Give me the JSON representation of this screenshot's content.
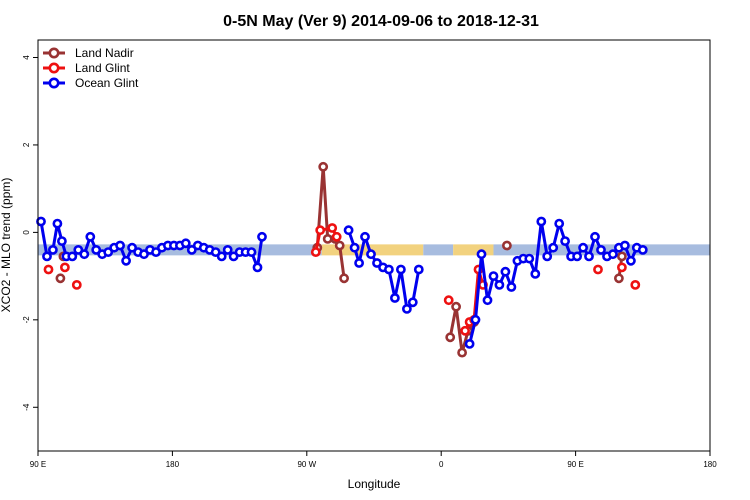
{
  "chart_data": {
    "type": "line",
    "title": "0-5N May (Ver 9)   2014-09-06 to 2018-12-31",
    "xlabel": "Longitude",
    "ylabel": "XCO2 - MLO trend (ppm)",
    "xlim": [
      90,
      450
    ],
    "ylim": [
      -5,
      4.4
    ],
    "x_ticks": [
      {
        "value": 90,
        "label": "90 E"
      },
      {
        "value": 180,
        "label": "180"
      },
      {
        "value": 270,
        "label": "90 W"
      },
      {
        "value": 360,
        "label": "0"
      },
      {
        "value": 450,
        "label": "90 E"
      },
      {
        "value": 540,
        "label": "180"
      }
    ],
    "x_ticks_note": "values listed in longitude units; chart range continues to 540",
    "y_ticks": [
      4,
      2,
      0,
      -2,
      -4
    ],
    "legend_position": "top-left",
    "band": {
      "y": -0.4,
      "segments": [
        {
          "from": 90,
          "to": 280,
          "color": "#a7bcdf"
        },
        {
          "from": 280,
          "to": 348,
          "color": "#f2d27f"
        },
        {
          "from": 348,
          "to": 368,
          "color": "#a7bcdf"
        },
        {
          "from": 368,
          "to": 395,
          "color": "#f2d27f"
        },
        {
          "from": 395,
          "to": 540,
          "color": "#a7bcdf"
        }
      ]
    },
    "series": [
      {
        "name": "Land Nadir",
        "color": "#993333",
        "segments": [
          [
            [
              107,
              -0.55
            ]
          ],
          [
            [
              105,
              -1.05
            ]
          ],
          [
            [
              277,
              -0.35
            ],
            [
              281,
              1.5
            ],
            [
              284,
              -0.15
            ],
            [
              289,
              -0.15
            ],
            [
              292,
              -0.3
            ],
            [
              295,
              -1.05
            ]
          ],
          [
            [
              366,
              -2.4
            ],
            [
              370,
              -1.7
            ],
            [
              374,
              -2.75
            ],
            [
              378,
              -2.25
            ],
            [
              382,
              -2.05
            ]
          ],
          [
            [
              404,
              -0.3
            ]
          ],
          [
            [
              479,
              -1.05
            ],
            [
              481,
              -0.55
            ]
          ]
        ]
      },
      {
        "name": "Land Glint",
        "color": "#ee1111",
        "segments": [
          [
            [
              97,
              -0.85
            ]
          ],
          [
            [
              108,
              -0.8
            ]
          ],
          [
            [
              116,
              -1.2
            ]
          ],
          [
            [
              276,
              -0.45
            ],
            [
              279,
              0.05
            ],
            [
              287,
              0.1
            ],
            [
              290,
              -0.1
            ]
          ],
          [
            [
              365,
              -1.55
            ]
          ],
          [
            [
              376,
              -2.25
            ],
            [
              379,
              -2.05
            ],
            [
              382,
              -2.0
            ],
            [
              385,
              -0.85
            ],
            [
              388,
              -1.2
            ]
          ],
          [
            [
              465,
              -0.85
            ]
          ],
          [
            [
              481,
              -0.8
            ]
          ],
          [
            [
              490,
              -1.2
            ]
          ]
        ]
      },
      {
        "name": "Ocean Glint",
        "color": "#0000ee",
        "segments": [
          [
            [
              92,
              0.25
            ],
            [
              96,
              -0.55
            ],
            [
              100,
              -0.4
            ],
            [
              103,
              0.2
            ],
            [
              106,
              -0.2
            ],
            [
              109,
              -0.55
            ],
            [
              113,
              -0.55
            ],
            [
              117,
              -0.4
            ],
            [
              121,
              -0.5
            ],
            [
              125,
              -0.1
            ],
            [
              129,
              -0.4
            ],
            [
              133,
              -0.5
            ],
            [
              137,
              -0.45
            ],
            [
              141,
              -0.35
            ],
            [
              145,
              -0.3
            ],
            [
              149,
              -0.65
            ],
            [
              153,
              -0.35
            ],
            [
              157,
              -0.45
            ],
            [
              161,
              -0.5
            ],
            [
              165,
              -0.4
            ],
            [
              169,
              -0.45
            ],
            [
              173,
              -0.35
            ],
            [
              177,
              -0.3
            ],
            [
              181,
              -0.3
            ],
            [
              185,
              -0.3
            ],
            [
              189,
              -0.25
            ],
            [
              193,
              -0.4
            ],
            [
              197,
              -0.3
            ],
            [
              201,
              -0.35
            ],
            [
              205,
              -0.4
            ],
            [
              209,
              -0.45
            ],
            [
              213,
              -0.55
            ],
            [
              217,
              -0.4
            ],
            [
              221,
              -0.55
            ],
            [
              225,
              -0.45
            ],
            [
              229,
              -0.45
            ],
            [
              233,
              -0.45
            ],
            [
              237,
              -0.8
            ],
            [
              240,
              -0.1
            ]
          ],
          [
            [
              298,
              0.05
            ],
            [
              302,
              -0.35
            ],
            [
              305,
              -0.7
            ],
            [
              309,
              -0.1
            ],
            [
              313,
              -0.5
            ],
            [
              317,
              -0.7
            ],
            [
              321,
              -0.8
            ],
            [
              325,
              -0.85
            ],
            [
              329,
              -1.5
            ],
            [
              333,
              -0.85
            ],
            [
              337,
              -1.75
            ],
            [
              341,
              -1.6
            ],
            [
              345,
              -0.85
            ]
          ],
          [
            [
              379,
              -2.55
            ],
            [
              383,
              -2.0
            ],
            [
              387,
              -0.5
            ],
            [
              391,
              -1.55
            ],
            [
              395,
              -1.0
            ],
            [
              399,
              -1.2
            ],
            [
              403,
              -0.9
            ],
            [
              407,
              -1.25
            ],
            [
              411,
              -0.65
            ],
            [
              415,
              -0.6
            ],
            [
              419,
              -0.6
            ],
            [
              423,
              -0.95
            ],
            [
              427,
              0.25
            ],
            [
              431,
              -0.55
            ],
            [
              435,
              -0.35
            ],
            [
              439,
              0.2
            ],
            [
              443,
              -0.2
            ],
            [
              447,
              -0.55
            ],
            [
              451,
              -0.55
            ],
            [
              455,
              -0.35
            ],
            [
              459,
              -0.55
            ],
            [
              463,
              -0.1
            ],
            [
              467,
              -0.4
            ],
            [
              471,
              -0.55
            ],
            [
              475,
              -0.5
            ],
            [
              479,
              -0.35
            ],
            [
              483,
              -0.3
            ],
            [
              487,
              -0.65
            ],
            [
              491,
              -0.35
            ],
            [
              495,
              -0.4
            ]
          ]
        ]
      }
    ]
  }
}
